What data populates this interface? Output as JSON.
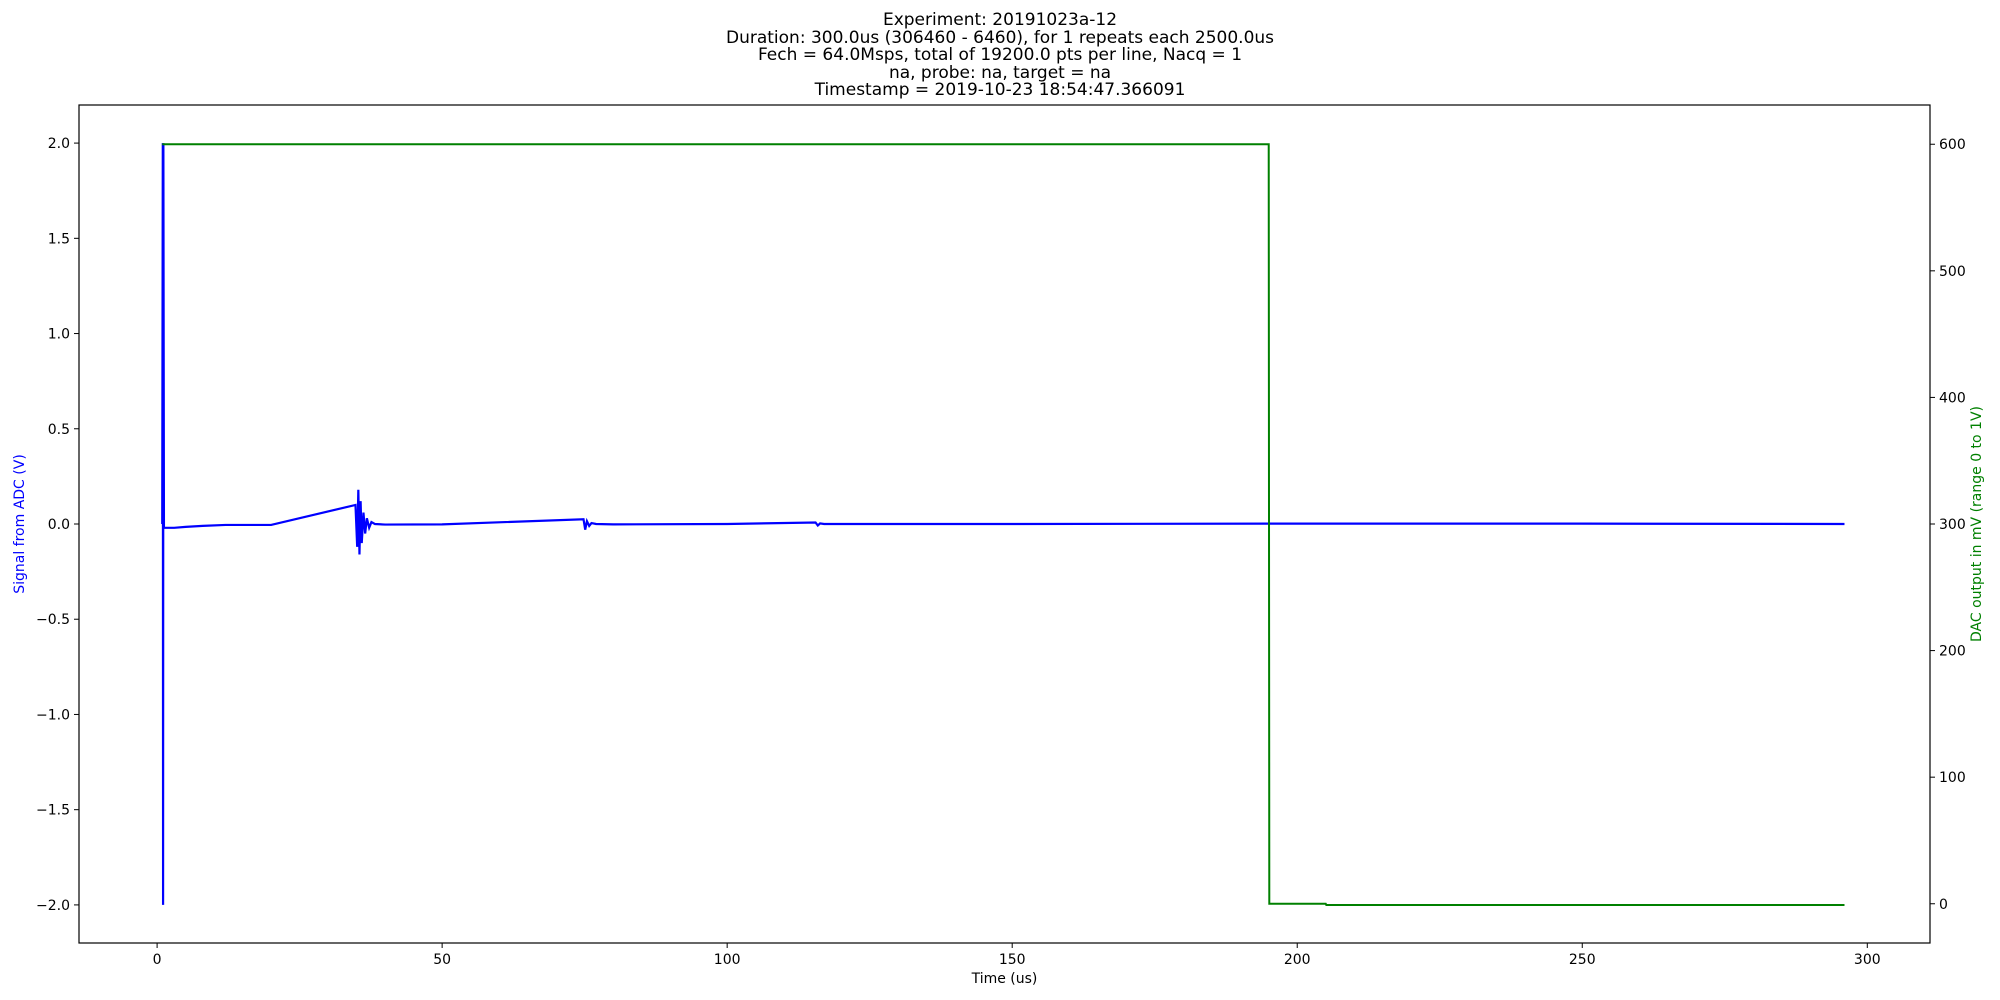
{
  "title_lines": [
    "Experiment: 20191023a-12",
    "Duration: 300.0us (306460 - 6460), for 1 repeats each 2500.0us",
    "Fech = 64.0Msps, total of 19200.0 pts per line, Nacq = 1",
    "na, probe: na, target = na",
    "Timestamp = 2019-10-23 18:54:47.366091"
  ],
  "colors": {
    "adc": "#0000ff",
    "dac": "#008000",
    "axis": "#000000"
  },
  "chart_data": {
    "type": "line",
    "xlabel": "Time (us)",
    "ylabel_left": "Signal from ADC (V)",
    "ylabel_right": "DAC output in mV (range 0 to 1V)",
    "xlim": [
      -13.7,
      311
    ],
    "ylim_left": [
      -2.2,
      2.2
    ],
    "ylim_right": [
      -31,
      631
    ],
    "x_ticks": [
      0,
      50,
      100,
      150,
      200,
      250,
      300
    ],
    "y_ticks_left": [
      -2.0,
      -1.5,
      -1.0,
      -0.5,
      0.0,
      0.5,
      1.0,
      1.5,
      2.0
    ],
    "y_ticks_left_labels": [
      "−2.0",
      "−1.5",
      "−1.0",
      "−0.5",
      "0.0",
      "0.5",
      "1.0",
      "1.5",
      "2.0"
    ],
    "y_ticks_right": [
      0,
      100,
      200,
      300,
      400,
      500,
      600
    ],
    "grid": false,
    "series": [
      {
        "axis": "left",
        "color": "#0000ff",
        "x": [
          0.9,
          1.0,
          1.05,
          1.1,
          1.2,
          1.5,
          3,
          5,
          8,
          12,
          20,
          34.8,
          35.1,
          35.3,
          35.5,
          35.7,
          35.9,
          36.2,
          36.5,
          36.8,
          37.2,
          37.6,
          38.2,
          40,
          50,
          74.8,
          75.1,
          75.4,
          75.8,
          76.2,
          77,
          80,
          100,
          115.5,
          115.9,
          116.3,
          117,
          150,
          200,
          250,
          296
        ],
        "y": [
          0.0,
          2.0,
          -2.0,
          2.0,
          -0.02,
          -0.02,
          -0.02,
          -0.015,
          -0.01,
          -0.005,
          -0.005,
          0.1,
          -0.12,
          0.18,
          -0.16,
          0.12,
          -0.1,
          0.06,
          -0.05,
          0.03,
          -0.02,
          0.01,
          0.0,
          -0.003,
          -0.002,
          0.025,
          -0.03,
          0.015,
          -0.01,
          0.005,
          0.0,
          -0.002,
          0.0,
          0.008,
          -0.008,
          0.003,
          0.0,
          0.0,
          0.002,
          0.002,
          0.0
        ]
      },
      {
        "axis": "right",
        "color": "#008000",
        "x": [
          0.9,
          1.0,
          195.0,
          195.1,
          205.0,
          205.1,
          296
        ],
        "y": [
          600,
          600,
          600,
          0,
          0,
          -1,
          -1
        ]
      }
    ]
  }
}
